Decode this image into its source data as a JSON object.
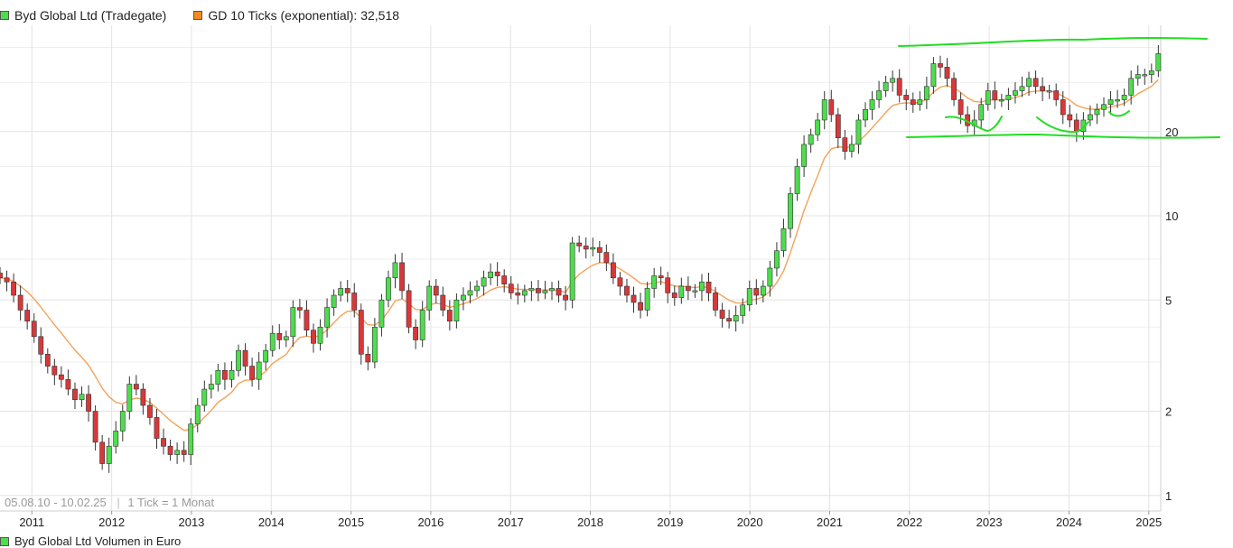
{
  "legend": {
    "price_series": "Byd Global Ltd (Tradegate)",
    "price_color": "#4ddd4d",
    "ma_series": "GD 10 Ticks (exponential): 32,518",
    "ma_color": "#f08a24"
  },
  "footer": {
    "range": "05.08.10 - 10.02.25",
    "tick_info": "1 Tick = 1 Monat",
    "volume_series": "Byd Global Ltd Volumen in Euro"
  },
  "colors": {
    "up": "#4ddd4d",
    "down": "#d9383a",
    "ma": "#f4a259",
    "annotation": "#22dd22",
    "grid": "#e3e3e3"
  },
  "chart_data": {
    "type": "candlestick",
    "y_scale": "log",
    "ylim": [
      0.88,
      48
    ],
    "xlim": [
      2010.6,
      2025.15
    ],
    "y_ticks": [
      {
        "value": 1,
        "label": "1"
      },
      {
        "value": 2,
        "label": "2"
      },
      {
        "value": 5,
        "label": "5"
      },
      {
        "value": 10,
        "label": "10"
      },
      {
        "value": 20,
        "label": "20"
      }
    ],
    "x_ticks": [
      {
        "value": 2011,
        "label": "2011"
      },
      {
        "value": 2012,
        "label": "2012"
      },
      {
        "value": 2013,
        "label": "2013"
      },
      {
        "value": 2014,
        "label": "2014"
      },
      {
        "value": 2015,
        "label": "2015"
      },
      {
        "value": 2016,
        "label": "2016"
      },
      {
        "value": 2017,
        "label": "2017"
      },
      {
        "value": 2018,
        "label": "2018"
      },
      {
        "value": 2019,
        "label": "2019"
      },
      {
        "value": 2020,
        "label": "2020"
      },
      {
        "value": 2021,
        "label": "2021"
      },
      {
        "value": 2022,
        "label": "2022"
      },
      {
        "value": 2023,
        "label": "2023"
      },
      {
        "value": 2024,
        "label": "2024"
      },
      {
        "value": 2025,
        "label": "2025"
      }
    ],
    "interval": "monthly",
    "closes": [
      6.0,
      5.8,
      5.2,
      4.6,
      4.2,
      3.7,
      3.2,
      2.9,
      2.7,
      2.6,
      2.4,
      2.2,
      2.3,
      2.0,
      1.55,
      1.3,
      1.5,
      1.7,
      2.0,
      2.5,
      2.4,
      2.1,
      1.9,
      1.6,
      1.5,
      1.4,
      1.45,
      1.4,
      1.8,
      2.1,
      2.4,
      2.5,
      2.8,
      2.6,
      2.8,
      3.3,
      2.9,
      2.6,
      3.0,
      3.3,
      3.8,
      3.6,
      3.7,
      4.7,
      4.6,
      3.9,
      3.5,
      4.0,
      4.7,
      5.2,
      5.5,
      5.3,
      4.6,
      3.2,
      3.0,
      4.0,
      5.0,
      6.0,
      6.8,
      5.4,
      4.0,
      3.6,
      4.6,
      5.6,
      5.2,
      4.6,
      4.2,
      5.0,
      5.2,
      5.4,
      5.6,
      6.0,
      6.3,
      6.1,
      5.7,
      5.3,
      5.2,
      5.4,
      5.5,
      5.3,
      5.4,
      5.5,
      5.2,
      5.0,
      8.0,
      7.8,
      7.6,
      7.7,
      7.4,
      6.8,
      6.0,
      5.6,
      5.2,
      4.9,
      4.6,
      5.5,
      6.1,
      6.0,
      5.3,
      5.1,
      5.6,
      5.4,
      5.4,
      5.8,
      5.3,
      4.6,
      4.3,
      4.2,
      4.4,
      4.8,
      5.5,
      5.2,
      5.6,
      6.5,
      7.5,
      9.0,
      12.0,
      15.0,
      18.0,
      19.5,
      22.0,
      26.0,
      23.0,
      19.0,
      17.0,
      18.0,
      22.0,
      24.0,
      26.0,
      28.0,
      30.0,
      31.0,
      27.0,
      26.0,
      25.0,
      26.0,
      29.0,
      35.0,
      34.0,
      31.0,
      26.0,
      23.0,
      21.0,
      22.0,
      25.0,
      28.0,
      26.0,
      26.0,
      27.0,
      28.0,
      29.0,
      31.0,
      29.0,
      28.0,
      28.0,
      26.0,
      23.0,
      22.0,
      20.0,
      22.0,
      23.0,
      24.0,
      25.0,
      26.0,
      26.0,
      27.0,
      31.0,
      32.0,
      32.0,
      33.0,
      38.0
    ],
    "moving_average": "exponential, 10 ticks"
  }
}
